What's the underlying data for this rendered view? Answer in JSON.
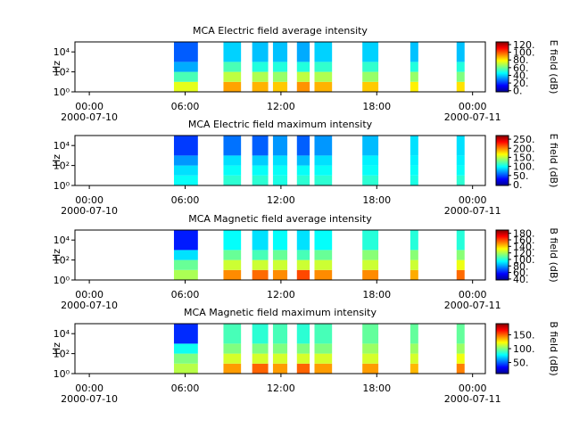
{
  "chart_data": [
    {
      "type": "spectrogram",
      "title": "MCA  Electric field average intensity",
      "ylabel": "Hz",
      "colorbar_label": "E field (dB)",
      "xlim": [
        -0.9,
        24.8
      ],
      "xticks": [
        {
          "value": 0,
          "label": "00:00\n2000-07-10"
        },
        {
          "value": 6,
          "label": "06:00"
        },
        {
          "value": 12,
          "label": "12:00"
        },
        {
          "value": 18,
          "label": "18:00"
        },
        {
          "value": 24,
          "label": "00:00\n2000-07-11"
        }
      ],
      "ylim": [
        1,
        100000
      ],
      "log_y": true,
      "yticks": [
        {
          "value": 1,
          "label": "10⁰"
        },
        {
          "value": 100,
          "label": "10²"
        },
        {
          "value": 10000,
          "label": "10⁴"
        }
      ],
      "clim": [
        -3,
        127
      ],
      "cticks": [
        {
          "value": 0,
          "label": "0."
        },
        {
          "value": 20,
          "label": "20."
        },
        {
          "value": 40,
          "label": "40."
        },
        {
          "value": 60,
          "label": "60."
        },
        {
          "value": 80,
          "label": "80."
        },
        {
          "value": 100,
          "label": "100."
        },
        {
          "value": 120,
          "label": "120."
        }
      ],
      "time_bins": [
        [
          5.3,
          6.8
        ],
        [
          8.4,
          9.5
        ],
        [
          10.2,
          11.2
        ],
        [
          11.5,
          12.4
        ],
        [
          13.0,
          13.8
        ],
        [
          14.1,
          15.2
        ],
        [
          17.1,
          18.1
        ],
        [
          20.1,
          20.6
        ],
        [
          23.0,
          23.5
        ]
      ],
      "freq_bins": [
        1,
        10,
        100,
        1000,
        100000
      ],
      "values": [
        [
          75,
          55,
          35,
          25
        ],
        [
          90,
          70,
          55,
          40
        ],
        [
          88,
          68,
          50,
          38
        ],
        [
          85,
          65,
          50,
          38
        ],
        [
          92,
          70,
          50,
          35
        ],
        [
          88,
          68,
          52,
          40
        ],
        [
          85,
          65,
          52,
          40
        ],
        [
          80,
          65,
          50,
          38
        ],
        [
          82,
          62,
          50,
          38
        ]
      ]
    },
    {
      "type": "spectrogram",
      "title": "MCA  Electric field maximum intensity",
      "ylabel": "Hz",
      "colorbar_label": "E field (dB)",
      "xlim": [
        -0.9,
        24.8
      ],
      "xticks": [
        {
          "value": 0,
          "label": "00:00\n2000-07-10"
        },
        {
          "value": 6,
          "label": "06:00"
        },
        {
          "value": 12,
          "label": "12:00"
        },
        {
          "value": 18,
          "label": "18:00"
        },
        {
          "value": 24,
          "label": "00:00\n2000-07-11"
        }
      ],
      "ylim": [
        1,
        100000
      ],
      "log_y": true,
      "yticks": [
        {
          "value": 1,
          "label": "10⁰"
        },
        {
          "value": 100,
          "label": "10²"
        },
        {
          "value": 10000,
          "label": "10⁴"
        }
      ],
      "clim": [
        -5,
        270
      ],
      "cticks": [
        {
          "value": 0,
          "label": "0."
        },
        {
          "value": 50,
          "label": "50."
        },
        {
          "value": 100,
          "label": "100."
        },
        {
          "value": 150,
          "label": "150."
        },
        {
          "value": 200,
          "label": "200."
        },
        {
          "value": 250,
          "label": "250."
        }
      ],
      "time_bins": [
        [
          5.3,
          6.8
        ],
        [
          8.4,
          9.5
        ],
        [
          10.2,
          11.2
        ],
        [
          11.5,
          12.4
        ],
        [
          13.0,
          13.8
        ],
        [
          14.1,
          15.2
        ],
        [
          17.1,
          18.1
        ],
        [
          20.1,
          20.6
        ],
        [
          23.0,
          23.5
        ]
      ],
      "freq_bins": [
        1,
        10,
        100,
        1000,
        100000
      ],
      "values": [
        [
          100,
          90,
          70,
          45
        ],
        [
          110,
          100,
          90,
          60
        ],
        [
          110,
          100,
          85,
          55
        ],
        [
          105,
          100,
          90,
          70
        ],
        [
          110,
          100,
          80,
          55
        ],
        [
          110,
          100,
          90,
          70
        ],
        [
          110,
          100,
          95,
          80
        ],
        [
          105,
          100,
          95,
          90
        ],
        [
          110,
          100,
          95,
          90
        ]
      ]
    },
    {
      "type": "spectrogram",
      "title": "MCA  Magnetic field average intensity",
      "ylabel": "Hz",
      "colorbar_label": "B field (dB)",
      "xlim": [
        -0.9,
        24.8
      ],
      "xticks": [
        {
          "value": 0,
          "label": "00:00\n2000-07-10"
        },
        {
          "value": 6,
          "label": "06:00"
        },
        {
          "value": 12,
          "label": "12:00"
        },
        {
          "value": 18,
          "label": "18:00"
        },
        {
          "value": 24,
          "label": "00:00\n2000-07-11"
        }
      ],
      "ylim": [
        1,
        100000
      ],
      "log_y": true,
      "yticks": [
        {
          "value": 1,
          "label": "10⁰"
        },
        {
          "value": 100,
          "label": "10²"
        },
        {
          "value": 10000,
          "label": "10⁴"
        }
      ],
      "clim": [
        37,
        190
      ],
      "cticks": [
        {
          "value": 40,
          "label": "40."
        },
        {
          "value": 60,
          "label": "60."
        },
        {
          "value": 80,
          "label": "80."
        },
        {
          "value": 100,
          "label": "100."
        },
        {
          "value": 120,
          "label": "120."
        },
        {
          "value": 140,
          "label": "140."
        },
        {
          "value": 160,
          "label": "160."
        },
        {
          "value": 180,
          "label": "180."
        }
      ],
      "time_bins": [
        [
          5.3,
          6.8
        ],
        [
          8.4,
          9.5
        ],
        [
          10.2,
          11.2
        ],
        [
          11.5,
          12.4
        ],
        [
          13.0,
          13.8
        ],
        [
          14.1,
          15.2
        ],
        [
          17.1,
          18.1
        ],
        [
          20.1,
          20.6
        ],
        [
          23.0,
          23.5
        ]
      ],
      "freq_bins": [
        1,
        10,
        100,
        1000,
        100000
      ],
      "values": [
        [
          120,
          110,
          90,
          60
        ],
        [
          150,
          125,
          110,
          95
        ],
        [
          155,
          125,
          105,
          90
        ],
        [
          150,
          125,
          110,
          95
        ],
        [
          160,
          125,
          105,
          90
        ],
        [
          150,
          125,
          110,
          95
        ],
        [
          150,
          125,
          115,
          100
        ],
        [
          145,
          125,
          115,
          100
        ],
        [
          155,
          130,
          115,
          100
        ]
      ]
    },
    {
      "type": "spectrogram",
      "title": "MCA  Magnetic field maximum intensity",
      "ylabel": "Hz",
      "colorbar_label": "B field (dB)",
      "xlim": [
        -0.9,
        24.8
      ],
      "xticks": [
        {
          "value": 0,
          "label": "00:00\n2000-07-10"
        },
        {
          "value": 6,
          "label": "06:00"
        },
        {
          "value": 12,
          "label": "12:00"
        },
        {
          "value": 18,
          "label": "18:00"
        },
        {
          "value": 24,
          "label": "00:00\n2000-07-11"
        }
      ],
      "ylim": [
        1,
        100000
      ],
      "log_y": true,
      "yticks": [
        {
          "value": 1,
          "label": "10⁰"
        },
        {
          "value": 100,
          "label": "10²"
        },
        {
          "value": 10000,
          "label": "10⁴"
        }
      ],
      "clim": [
        10,
        190
      ],
      "cticks": [
        {
          "value": 50,
          "label": "50."
        },
        {
          "value": 100,
          "label": "100."
        },
        {
          "value": 150,
          "label": "150."
        }
      ],
      "time_bins": [
        [
          5.3,
          6.8
        ],
        [
          8.4,
          9.5
        ],
        [
          10.2,
          11.2
        ],
        [
          11.5,
          12.4
        ],
        [
          13.0,
          13.8
        ],
        [
          14.1,
          15.2
        ],
        [
          17.1,
          18.1
        ],
        [
          20.1,
          20.6
        ],
        [
          23.0,
          23.5
        ]
      ],
      "freq_bins": [
        1,
        10,
        100,
        1000,
        100000
      ],
      "values": [
        [
          110,
          100,
          80,
          40
        ],
        [
          140,
          115,
          100,
          90
        ],
        [
          150,
          115,
          100,
          85
        ],
        [
          140,
          115,
          100,
          90
        ],
        [
          150,
          115,
          100,
          85
        ],
        [
          140,
          115,
          100,
          90
        ],
        [
          140,
          115,
          105,
          95
        ],
        [
          135,
          115,
          105,
          95
        ],
        [
          145,
          120,
          105,
          95
        ]
      ]
    }
  ]
}
